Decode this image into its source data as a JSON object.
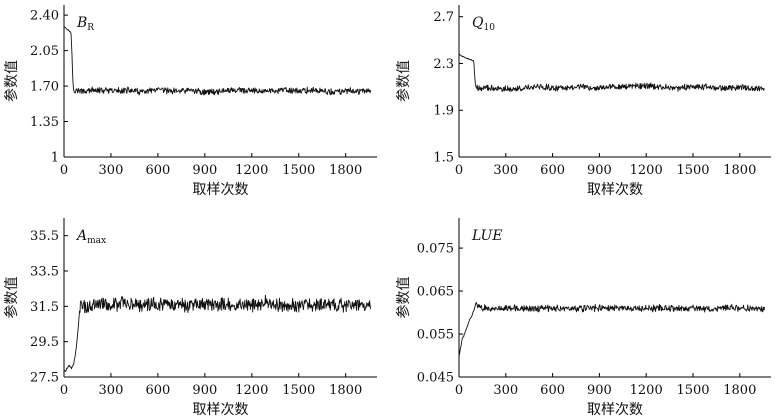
{
  "chart_data": [
    {
      "type": "line",
      "id": "br",
      "title": "B",
      "title_sub": "R",
      "title_sub_italic": true,
      "xlabel": "取样次数",
      "ylabel": "参数值",
      "xlim": [
        0,
        2000
      ],
      "ylim": [
        1.0,
        2.5
      ],
      "xticks": [
        0,
        300,
        600,
        900,
        1200,
        1500,
        1800
      ],
      "xtick_labels": [
        "0",
        "300",
        "600",
        "900",
        "1200",
        "1500",
        "1800"
      ],
      "yticks": [
        1.0,
        1.35,
        1.7,
        2.05,
        2.4
      ],
      "ytick_labels": [
        "1",
        "1.35",
        "1.70",
        "2.05",
        "2.40"
      ],
      "grid": false,
      "series": [
        {
          "x": [
            0,
            10,
            20,
            30,
            35,
            40,
            45,
            50,
            55,
            60,
            65,
            70,
            80,
            100,
            150,
            200,
            300,
            400,
            500,
            600,
            700,
            800,
            900,
            1000,
            1100,
            1200,
            1300,
            1400,
            1500,
            1600,
            1700,
            1800,
            1900,
            1960
          ],
          "y": [
            2.29,
            2.28,
            2.26,
            2.25,
            2.24,
            2.24,
            2.22,
            2.05,
            1.8,
            1.68,
            1.64,
            1.65,
            1.66,
            1.65,
            1.65,
            1.66,
            1.65,
            1.66,
            1.64,
            1.66,
            1.65,
            1.66,
            1.64,
            1.65,
            1.66,
            1.65,
            1.65,
            1.66,
            1.65,
            1.66,
            1.64,
            1.65,
            1.65,
            1.65
          ],
          "noise_after": 60,
          "noise_amp": 0.035
        }
      ]
    },
    {
      "type": "line",
      "id": "q10",
      "title": "Q",
      "title_sub": "10",
      "title_sub_italic": false,
      "xlabel": "取样次数",
      "ylabel": "参数值",
      "xlim": [
        0,
        2000
      ],
      "ylim": [
        1.5,
        2.8
      ],
      "xticks": [
        0,
        300,
        600,
        900,
        1200,
        1500,
        1800
      ],
      "xtick_labels": [
        "0",
        "300",
        "600",
        "900",
        "1200",
        "1500",
        "1800"
      ],
      "yticks": [
        1.5,
        1.9,
        2.3,
        2.7
      ],
      "ytick_labels": [
        "1.5",
        "1.9",
        "2.3",
        "2.7"
      ],
      "grid": false,
      "series": [
        {
          "x": [
            0,
            20,
            40,
            60,
            80,
            95,
            100,
            105,
            110,
            130,
            200,
            300,
            400,
            500,
            600,
            700,
            800,
            900,
            1000,
            1100,
            1200,
            1300,
            1400,
            1500,
            1600,
            1700,
            1800,
            1900,
            1960
          ],
          "y": [
            2.38,
            2.36,
            2.35,
            2.34,
            2.33,
            2.32,
            2.2,
            2.12,
            2.1,
            2.09,
            2.09,
            2.08,
            2.09,
            2.1,
            2.09,
            2.09,
            2.1,
            2.09,
            2.1,
            2.1,
            2.11,
            2.1,
            2.09,
            2.1,
            2.1,
            2.09,
            2.1,
            2.09,
            2.09
          ],
          "noise_after": 110,
          "noise_amp": 0.03
        }
      ]
    },
    {
      "type": "line",
      "id": "amax",
      "title": "A",
      "title_sub": "max",
      "title_sub_italic": false,
      "xlabel": "取样次数",
      "ylabel": "参数值",
      "xlim": [
        0,
        2000
      ],
      "ylim": [
        27.5,
        36.5
      ],
      "xticks": [
        0,
        300,
        600,
        900,
        1200,
        1500,
        1800
      ],
      "xtick_labels": [
        "0",
        "300",
        "600",
        "900",
        "1200",
        "1500",
        "1800"
      ],
      "yticks": [
        27.5,
        29.5,
        31.5,
        33.5,
        35.5
      ],
      "ytick_labels": [
        "27.5",
        "29.5",
        "31.5",
        "33.5",
        "35.5"
      ],
      "grid": false,
      "series": [
        {
          "x": [
            0,
            10,
            20,
            30,
            40,
            50,
            60,
            70,
            80,
            90,
            100,
            110,
            130,
            200,
            300,
            400,
            500,
            600,
            700,
            800,
            900,
            1000,
            1100,
            1200,
            1300,
            1400,
            1500,
            1600,
            1700,
            1800,
            1900,
            1960
          ],
          "y": [
            27.9,
            27.8,
            28.0,
            28.1,
            28.1,
            28.0,
            28.2,
            28.6,
            29.3,
            30.2,
            31.3,
            31.6,
            31.5,
            31.6,
            31.6,
            31.7,
            31.6,
            31.7,
            31.6,
            31.5,
            31.6,
            31.6,
            31.6,
            31.6,
            31.7,
            31.5,
            31.6,
            31.6,
            31.6,
            31.5,
            31.6,
            31.6
          ],
          "noise_after": 100,
          "noise_amp": 0.45
        }
      ]
    },
    {
      "type": "line",
      "id": "lue",
      "title": "LUE",
      "title_sub": "",
      "title_sub_italic": false,
      "xlabel": "取样次数",
      "ylabel": "参数值",
      "xlim": [
        0,
        2000
      ],
      "ylim": [
        0.045,
        0.082
      ],
      "xticks": [
        0,
        300,
        600,
        900,
        1200,
        1500,
        1800
      ],
      "xtick_labels": [
        "0",
        "300",
        "600",
        "900",
        "1200",
        "1500",
        "1800"
      ],
      "yticks": [
        0.045,
        0.055,
        0.065,
        0.075
      ],
      "ytick_labels": [
        "0.045",
        "0.055",
        "0.065",
        "0.075"
      ],
      "grid": false,
      "series": [
        {
          "x": [
            0,
            5,
            10,
            15,
            20,
            30,
            40,
            50,
            60,
            70,
            80,
            90,
            100,
            110,
            120,
            200,
            300,
            400,
            500,
            600,
            700,
            800,
            900,
            1000,
            1100,
            1200,
            1300,
            1400,
            1500,
            1600,
            1700,
            1800,
            1900,
            1960
          ],
          "y": [
            0.05,
            0.0505,
            0.052,
            0.0525,
            0.054,
            0.0545,
            0.0555,
            0.0565,
            0.0575,
            0.0585,
            0.059,
            0.06,
            0.061,
            0.0625,
            0.0612,
            0.061,
            0.0611,
            0.061,
            0.0609,
            0.0611,
            0.061,
            0.0609,
            0.0611,
            0.061,
            0.061,
            0.0609,
            0.0611,
            0.061,
            0.061,
            0.0609,
            0.0611,
            0.061,
            0.0609,
            0.0609
          ],
          "noise_after": 120,
          "noise_amp": 0.0009
        }
      ]
    }
  ]
}
